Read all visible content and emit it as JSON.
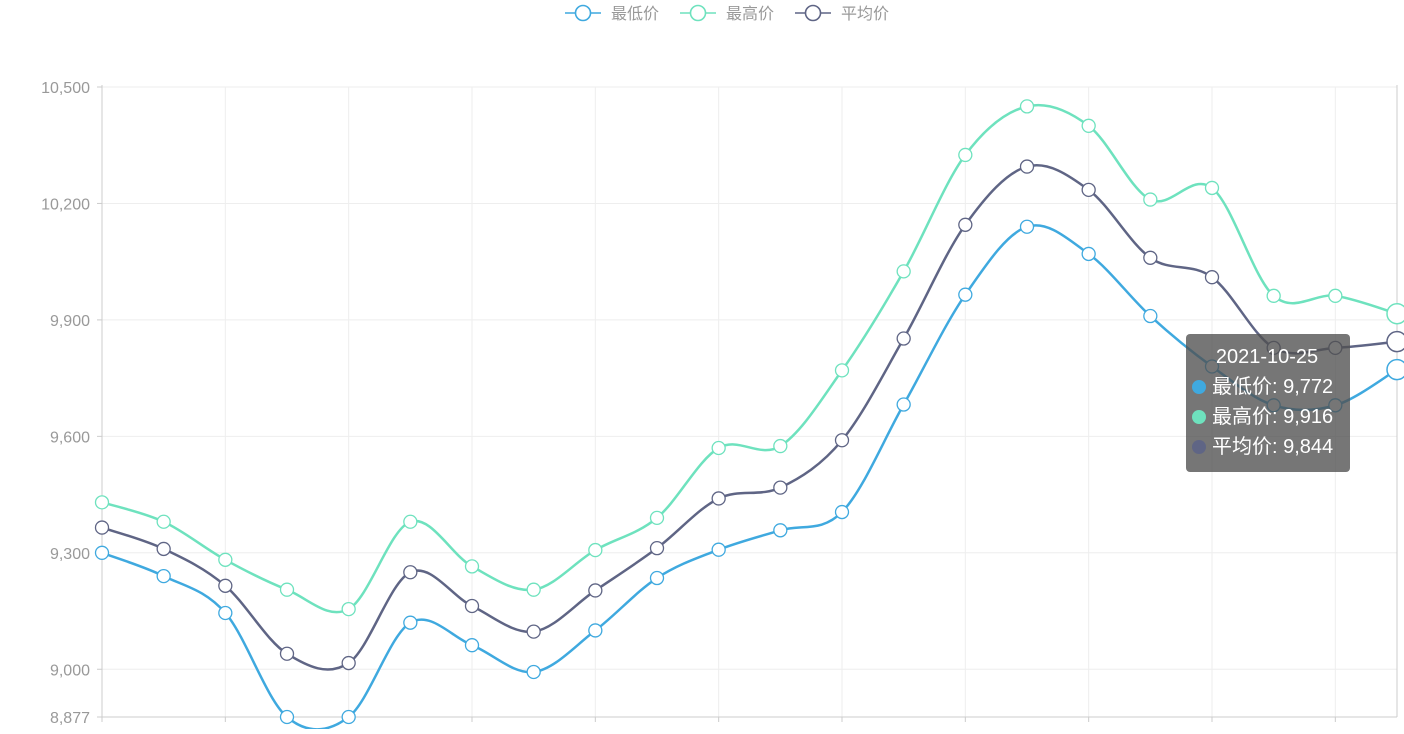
{
  "chart_data": {
    "type": "line",
    "smooth": true,
    "legend_position": "top-center",
    "grid": true,
    "ylim": [
      8877,
      10500
    ],
    "y_ticks": [
      "8,877",
      "9,000",
      "9,300",
      "9,600",
      "9,900",
      "10,200",
      "10,500"
    ],
    "y_tick_values": [
      8877,
      9000,
      9300,
      9600,
      9900,
      10200,
      10500
    ],
    "x": [
      "",
      "",
      "",
      "",
      "",
      "",
      "",
      "",
      "",
      "",
      "",
      "",
      "",
      "",
      "",
      "",
      "",
      "",
      "",
      "",
      "",
      "2021-10-25"
    ],
    "series": [
      {
        "name": "最低价",
        "color": "#3fa9df",
        "values": [
          9300,
          9240,
          9145,
          8877,
          8877,
          9120,
          9062,
          8993,
          9100,
          9235,
          9308,
          9358,
          9405,
          9682,
          9965,
          10140,
          10070,
          9910,
          9780,
          9680,
          9680,
          9772
        ]
      },
      {
        "name": "最高价",
        "color": "#6ee2be",
        "values": [
          9430,
          9380,
          9282,
          9205,
          9155,
          9380,
          9265,
          9205,
          9307,
          9390,
          9570,
          9575,
          9770,
          10025,
          10325,
          10450,
          10400,
          10210,
          10240,
          9962,
          9962,
          9916
        ]
      },
      {
        "name": "平均价",
        "color": "#5f6585",
        "values": [
          9365,
          9310,
          9215,
          9040,
          9016,
          9250,
          9163,
          9097,
          9203,
          9312,
          9440,
          9468,
          9590,
          9852,
          10145,
          10295,
          10235,
          10060,
          10010,
          9828,
          9828,
          9844
        ]
      }
    ],
    "tooltip": {
      "date": "2021-10-25",
      "rows": [
        {
          "label": "最低价: 9,772",
          "color": "#3fa9df"
        },
        {
          "label": "最高价: 9,916",
          "color": "#6ee2be"
        },
        {
          "label": "平均价: 9,844",
          "color": "#5f6585"
        }
      ]
    }
  }
}
